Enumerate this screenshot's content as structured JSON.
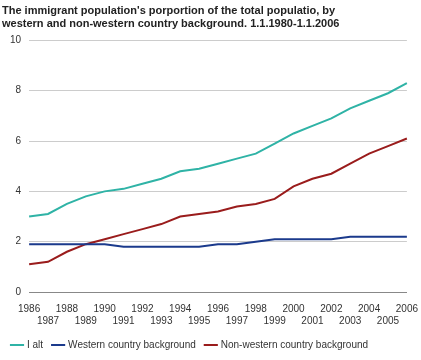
{
  "chart_data": {
    "type": "line",
    "title": [
      "The immigrant population's porportion of the total populatio, by",
      "western and non-western country background. 1.1.1980-1.1.2006"
    ],
    "categories": [
      "1986",
      "1987",
      "1988",
      "1989",
      "1990",
      "1991",
      "1992",
      "1993",
      "1994",
      "1995",
      "1996",
      "1997",
      "1998",
      "1999",
      "2000",
      "2001",
      "2002",
      "2003",
      "2004",
      "2005",
      "2006"
    ],
    "series": [
      {
        "name": "I alt",
        "color": "#2fb3a6",
        "values": [
          3.0,
          3.1,
          3.5,
          3.8,
          4.0,
          4.1,
          4.3,
          4.5,
          4.8,
          4.9,
          5.1,
          5.3,
          5.5,
          5.9,
          6.3,
          6.6,
          6.9,
          7.3,
          7.6,
          7.9,
          8.3
        ]
      },
      {
        "name": "Western country background",
        "color": "#1b3a8c",
        "values": [
          1.9,
          1.9,
          1.9,
          1.9,
          1.9,
          1.8,
          1.8,
          1.8,
          1.8,
          1.8,
          1.9,
          1.9,
          2.0,
          2.1,
          2.1,
          2.1,
          2.1,
          2.2,
          2.2,
          2.2,
          2.2
        ]
      },
      {
        "name": "Non-western country background",
        "color": "#9a1c1c",
        "values": [
          1.1,
          1.2,
          1.6,
          1.9,
          2.1,
          2.3,
          2.5,
          2.7,
          3.0,
          3.1,
          3.2,
          3.4,
          3.5,
          3.7,
          4.2,
          4.5,
          4.7,
          5.1,
          5.5,
          5.8,
          6.1
        ]
      }
    ],
    "ylim": [
      0,
      10
    ],
    "yticks": [
      0,
      2,
      4,
      6,
      8,
      10
    ],
    "grid": true,
    "legend": "bottom"
  }
}
